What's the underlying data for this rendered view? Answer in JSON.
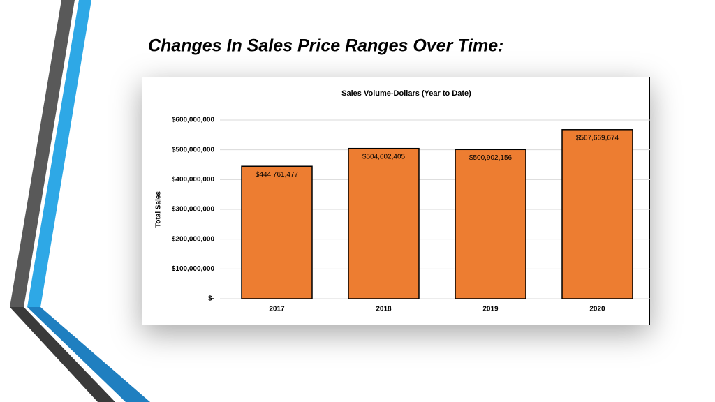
{
  "slide": {
    "title": "Changes In Sales Price Ranges Over Time:"
  },
  "chart_data": {
    "type": "bar",
    "title": "Sales Volume-Dollars (Year to Date)",
    "y_label": "Total Sales",
    "categories": [
      "2017",
      "2018",
      "2019",
      "2020"
    ],
    "values": [
      444761477,
      504602405,
      500902156,
      567669674
    ],
    "value_labels": [
      "$444,761,477",
      "$504,602,405",
      "$500,902,156",
      "$567,669,674"
    ],
    "color": "#ed7d31",
    "ylim": [
      0,
      600000000
    ],
    "yticks": [
      {
        "value": 0,
        "label": "$-"
      },
      {
        "value": 100000000,
        "label": "$100,000,000"
      },
      {
        "value": 200000000,
        "label": "$200,000,000"
      },
      {
        "value": 300000000,
        "label": "$300,000,000"
      },
      {
        "value": 400000000,
        "label": "$400,000,000"
      },
      {
        "value": 500000000,
        "label": "$500,000,000"
      },
      {
        "value": 600000000,
        "label": "$600,000,000"
      }
    ],
    "grid": true
  }
}
